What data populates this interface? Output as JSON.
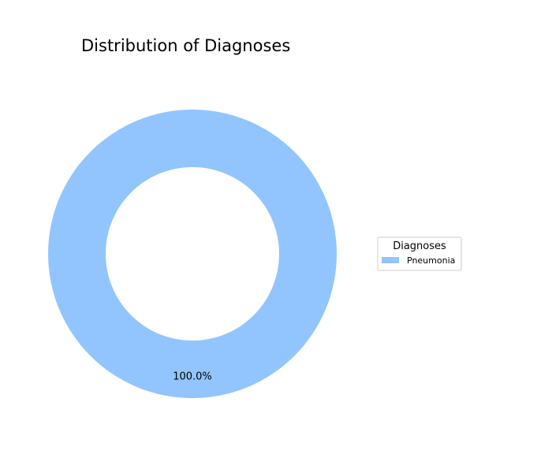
{
  "chart_data": {
    "type": "pie",
    "donut": true,
    "title": "Distribution of Diagnoses",
    "categories": [
      "Pneumonia"
    ],
    "values": [
      100.0
    ],
    "value_labels": [
      "100.0%"
    ],
    "colors": [
      "#92c5fd"
    ],
    "legend": {
      "title": "Diagnoses",
      "placement": "center-right",
      "entries": [
        "Pneumonia"
      ]
    }
  }
}
